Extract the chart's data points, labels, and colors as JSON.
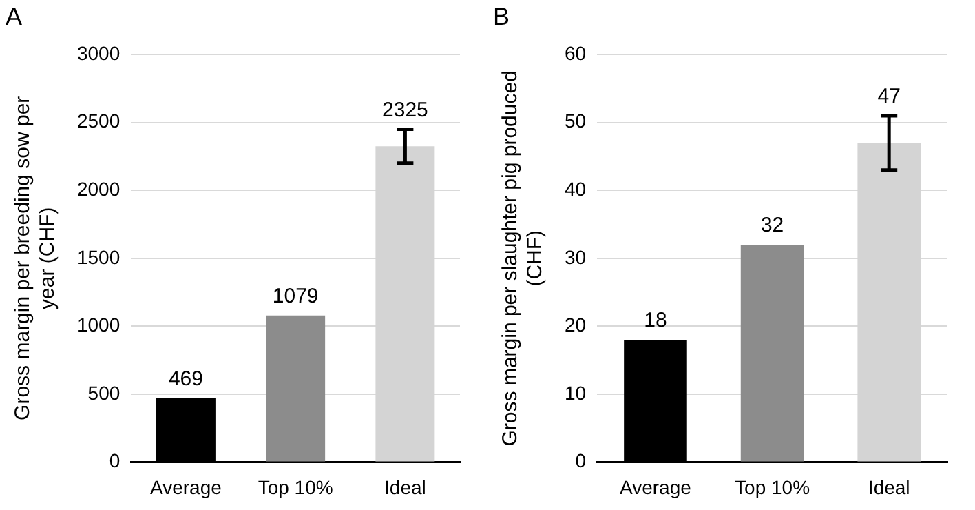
{
  "chart_data": [
    {
      "type": "bar",
      "title": "A",
      "ylabel": "Gross margin per breeding sow per year (CHF)",
      "categories": [
        "Average",
        "Top 10%",
        "Ideal"
      ],
      "values": [
        469,
        1079,
        2325
      ],
      "colors": [
        "#000000",
        "#8c8c8c",
        "#d4d4d4"
      ],
      "errors": [
        null,
        null,
        [
          2200,
          2450
        ]
      ],
      "ylim": [
        0,
        3000
      ],
      "yticks": [
        0,
        500,
        1000,
        1500,
        2000,
        2500,
        3000
      ],
      "grid": "y",
      "legend": false,
      "data_labels": true
    },
    {
      "type": "bar",
      "title": "B",
      "ylabel": "Gross margin per slaughter pig produced (CHF)",
      "categories": [
        "Average",
        "Top 10%",
        "Ideal"
      ],
      "values": [
        18,
        32,
        47
      ],
      "colors": [
        "#000000",
        "#8c8c8c",
        "#d4d4d4"
      ],
      "errors": [
        null,
        null,
        [
          43,
          51
        ]
      ],
      "ylim": [
        0,
        60
      ],
      "yticks": [
        0,
        10,
        20,
        30,
        40,
        50,
        60
      ],
      "grid": "y",
      "legend": false,
      "data_labels": true
    }
  ]
}
